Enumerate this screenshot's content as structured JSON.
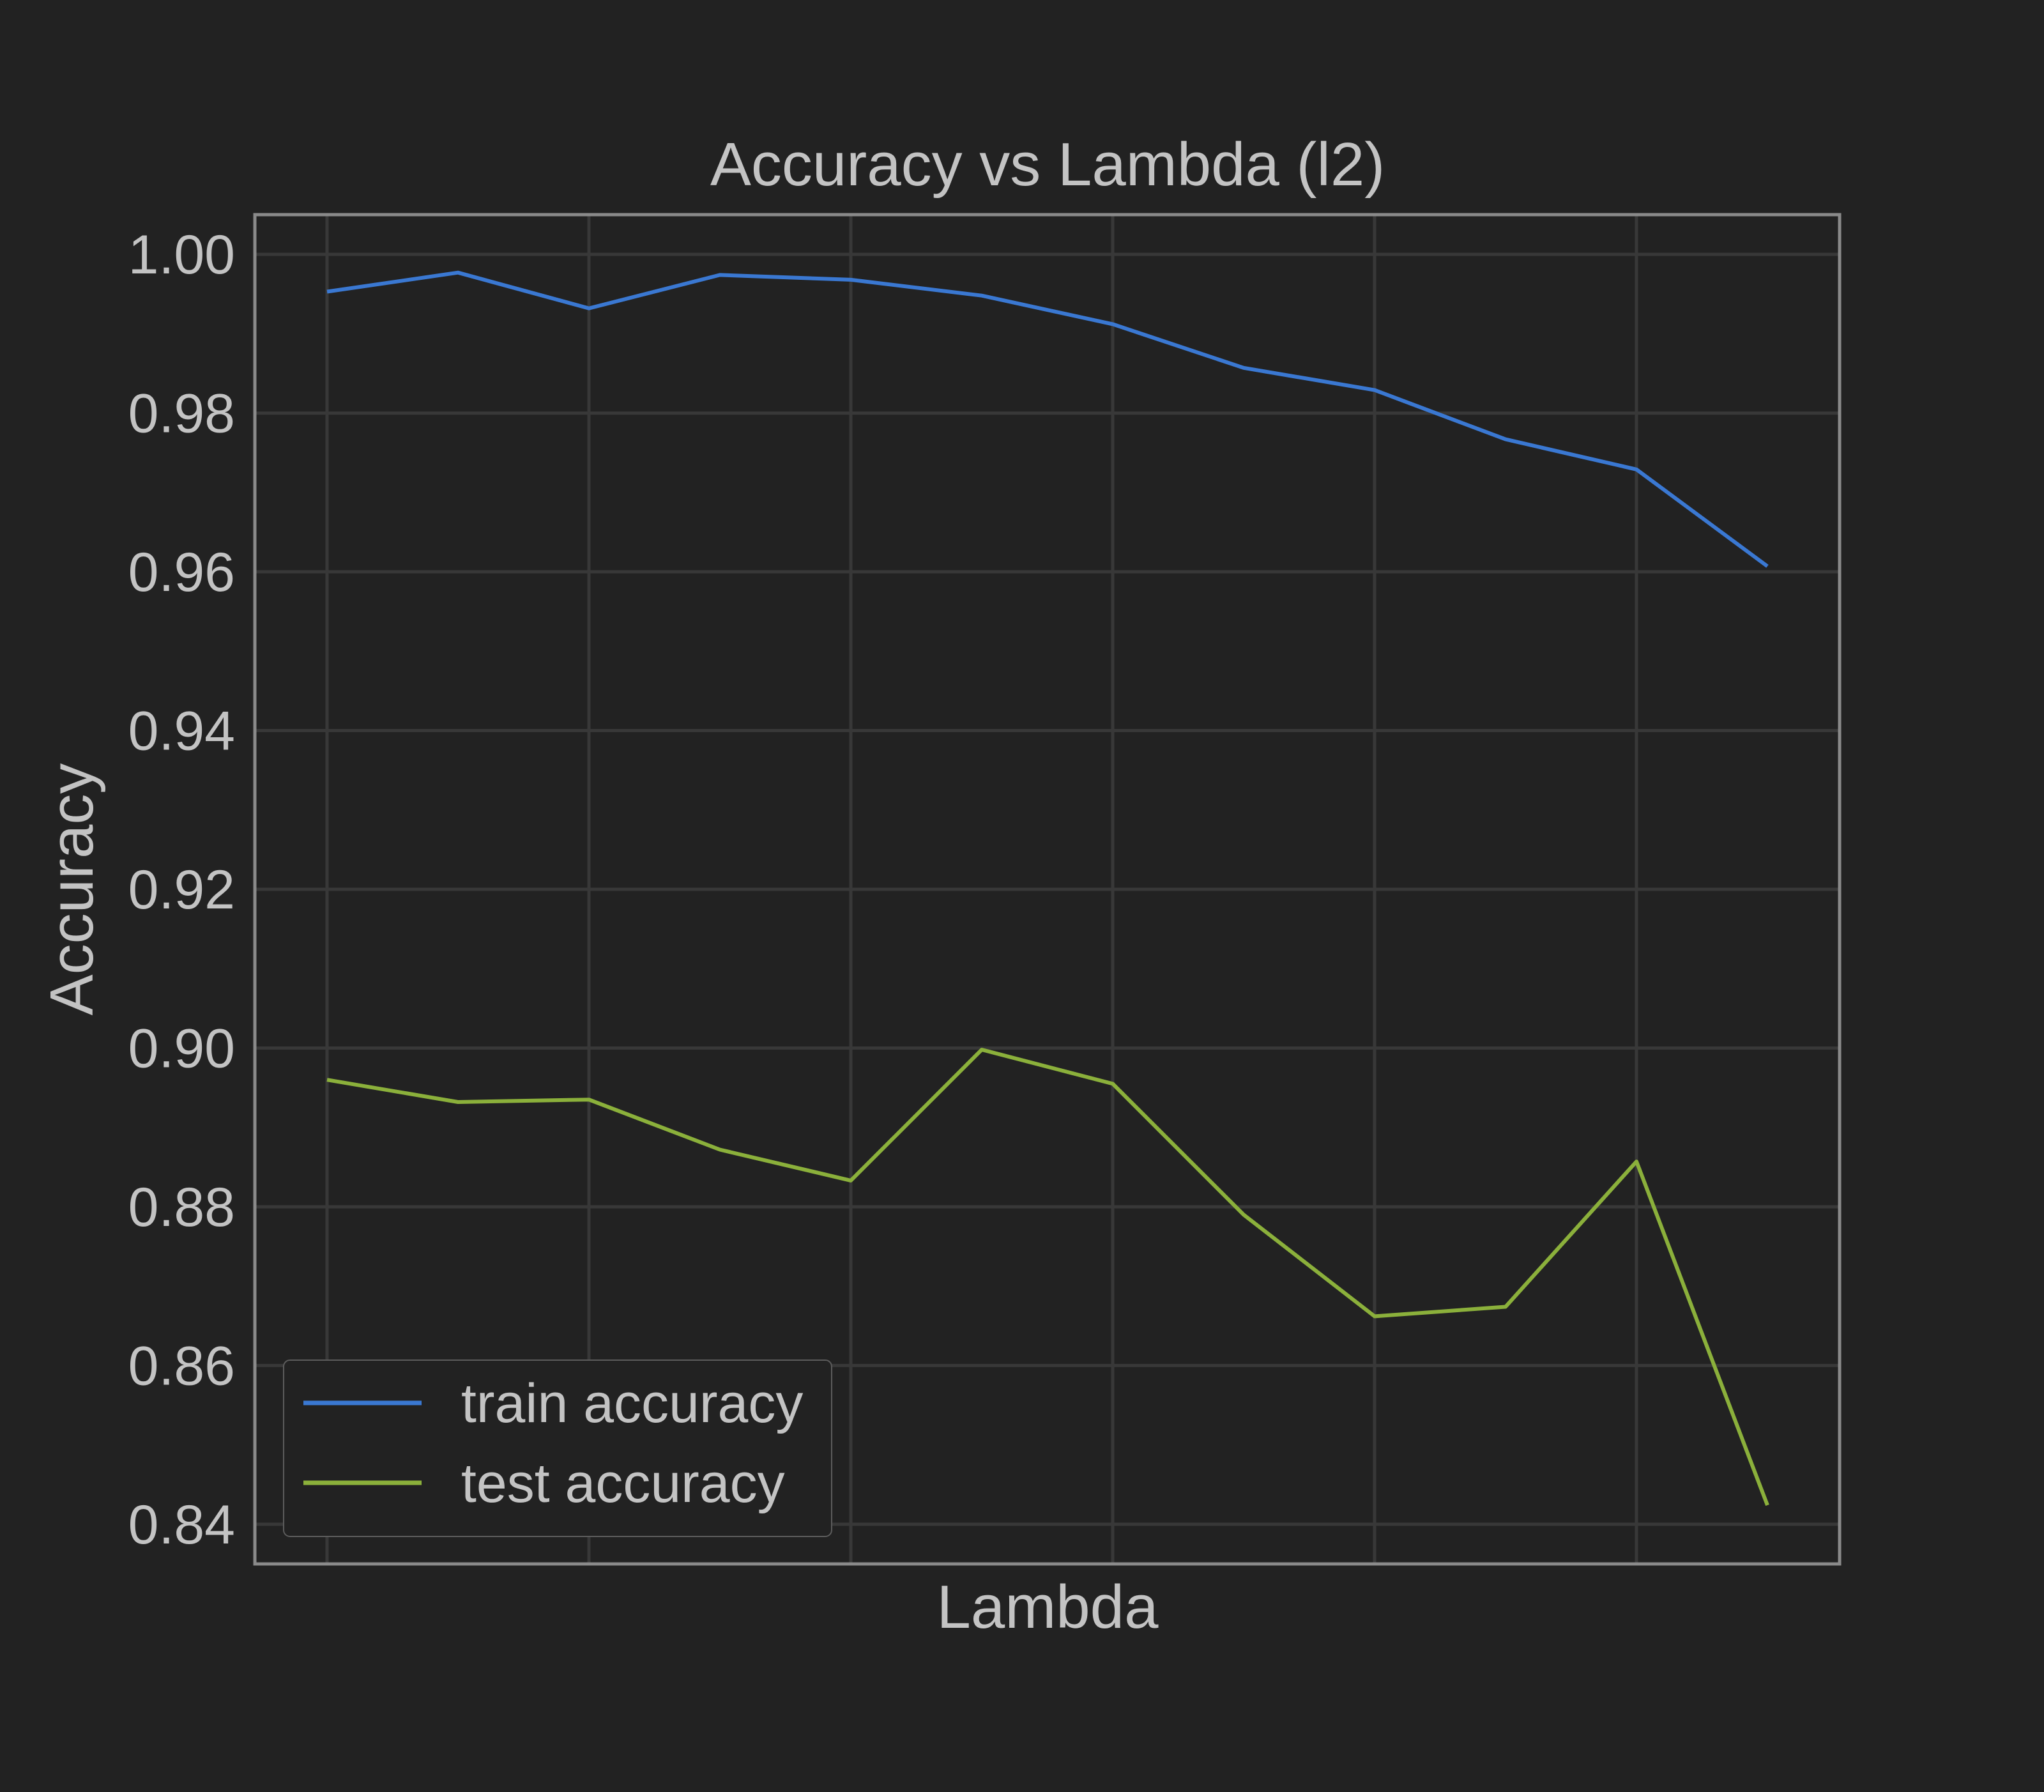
{
  "chart_data": {
    "type": "line",
    "title": "Accuracy vs Lambda (l2)",
    "xlabel": "Lambda",
    "ylabel": "Accuracy",
    "ylim": [
      0.835,
      1.005
    ],
    "yticks": [
      "0.84",
      "0.86",
      "0.88",
      "0.90",
      "0.92",
      "0.94",
      "0.96",
      "0.98",
      "1.00"
    ],
    "x": [
      0,
      1,
      2,
      3,
      4,
      5,
      6,
      7,
      8,
      9,
      10,
      11
    ],
    "series": [
      {
        "name": "train accuracy",
        "color": "#3a78d2",
        "values": [
          0.9953,
          0.9977,
          0.9932,
          0.9974,
          0.9968,
          0.9948,
          0.9912,
          0.9857,
          0.9829,
          0.9767,
          0.9729,
          0.9607
        ]
      },
      {
        "name": "test accuracy",
        "color": "#8bb03b",
        "values": [
          0.896,
          0.8932,
          0.8935,
          0.8872,
          0.8833,
          0.8998,
          0.8955,
          0.879,
          0.8662,
          0.8674,
          0.8857,
          0.8424
        ]
      }
    ],
    "grid": true,
    "legend": "lower-left",
    "colors": {
      "background": "#222222",
      "frame": "#8a8a8a",
      "grid": "#383838",
      "text": "#c3c3c3"
    }
  }
}
